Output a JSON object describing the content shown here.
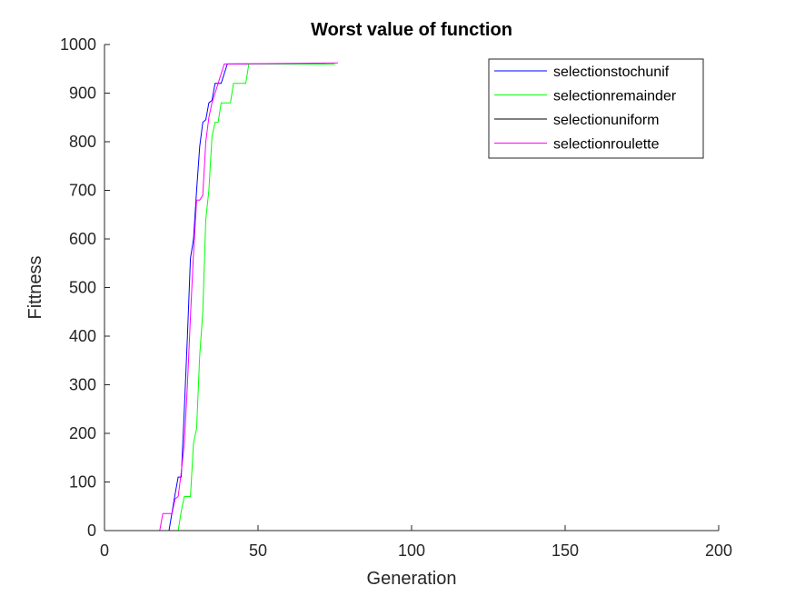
{
  "chart_data": {
    "type": "line",
    "title": "Worst value of function",
    "xlabel": "Generation",
    "ylabel": "Fittness",
    "xlim": [
      0,
      200
    ],
    "ylim": [
      0,
      1000
    ],
    "xticks": [
      0,
      50,
      100,
      150,
      200
    ],
    "yticks": [
      0,
      100,
      200,
      300,
      400,
      500,
      600,
      700,
      800,
      900,
      1000
    ],
    "grid": false,
    "legend_position": "top-right",
    "series": [
      {
        "name": "selectionstochunif",
        "color": "#0000ff",
        "x": [
          0,
          21,
          23,
          24,
          25,
          26,
          27,
          28,
          29,
          30,
          31,
          32,
          33,
          34,
          35,
          36,
          38,
          40,
          72
        ],
        "y": [
          0,
          0,
          75,
          110,
          110,
          250,
          400,
          560,
          600,
          700,
          790,
          840,
          845,
          880,
          885,
          920,
          920,
          960,
          960
        ]
      },
      {
        "name": "selectionremainder",
        "color": "#00ff00",
        "x": [
          0,
          24,
          25,
          26,
          27,
          28,
          29,
          30,
          31,
          32,
          33,
          34,
          35,
          36,
          37,
          38,
          39,
          40,
          41,
          42,
          43,
          44,
          45,
          46,
          47,
          75
        ],
        "y": [
          0,
          0,
          40,
          70,
          70,
          70,
          180,
          210,
          360,
          450,
          640,
          700,
          810,
          840,
          840,
          880,
          880,
          880,
          880,
          920,
          920,
          920,
          920,
          920,
          960,
          960
        ]
      },
      {
        "name": "selectionuniform",
        "color": "#000000",
        "x": [
          0,
          200
        ],
        "y": [
          0,
          0
        ]
      },
      {
        "name": "selectionroulette",
        "color": "#ff00ff",
        "x": [
          0,
          18,
          19,
          20,
          21,
          22,
          23,
          24,
          25,
          26,
          27,
          28,
          29,
          30,
          31,
          32,
          33,
          34,
          35,
          36,
          37,
          38,
          39,
          40,
          76
        ],
        "y": [
          0,
          0,
          35,
          35,
          35,
          35,
          65,
          70,
          120,
          180,
          300,
          440,
          570,
          680,
          680,
          690,
          800,
          850,
          880,
          900,
          920,
          940,
          960,
          960,
          962
        ]
      }
    ]
  }
}
